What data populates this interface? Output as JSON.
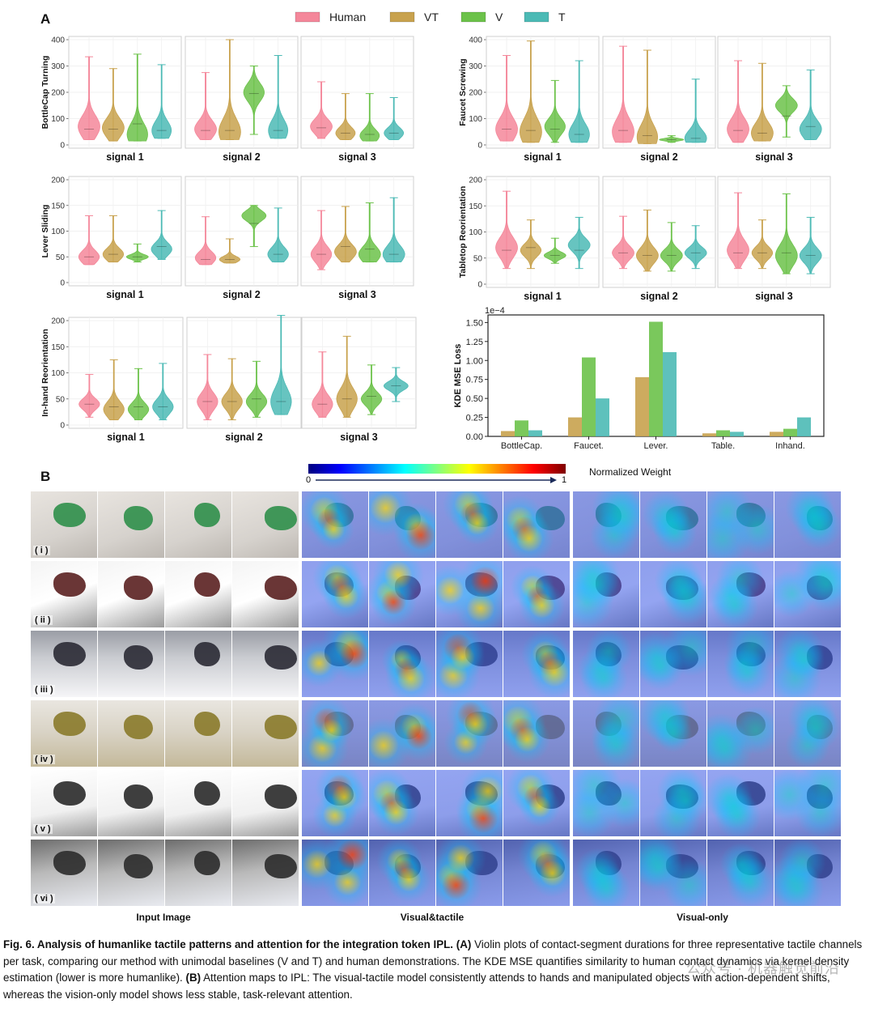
{
  "figure": {
    "panel_a_label": "A",
    "panel_b_label": "B",
    "legend": [
      {
        "name": "Human",
        "color": "#f4879a"
      },
      {
        "name": "VT",
        "color": "#c8a24e"
      },
      {
        "name": "V",
        "color": "#6cc24a"
      },
      {
        "name": "T",
        "color": "#4cbab5"
      }
    ],
    "violin_rows": [
      {
        "task": "BottleCap Turning",
        "ylabels": [
          "0",
          "100",
          "200",
          "300",
          "400"
        ],
        "ymax": 400,
        "groups": [
          {
            "signal": "signal 1",
            "series": [
              {
                "min": 20,
                "max": 335,
                "med": 60,
                "peak": 70,
                "width": 0.9
              },
              {
                "min": 15,
                "max": 290,
                "med": 60,
                "peak": 65,
                "width": 0.9
              },
              {
                "min": 15,
                "max": 345,
                "med": 80,
                "peak": 40,
                "width": 0.85
              },
              {
                "min": 25,
                "max": 305,
                "med": 55,
                "peak": 55,
                "width": 0.8
              }
            ]
          },
          {
            "signal": "signal 2",
            "series": [
              {
                "min": 20,
                "max": 275,
                "med": 55,
                "peak": 60,
                "width": 0.9
              },
              {
                "min": 20,
                "max": 400,
                "med": 55,
                "peak": 50,
                "width": 0.9
              },
              {
                "min": 40,
                "max": 300,
                "med": 195,
                "peak": 200,
                "width": 0.85
              },
              {
                "min": 25,
                "max": 340,
                "med": 55,
                "peak": 55,
                "width": 0.8
              }
            ]
          },
          {
            "signal": "signal 3",
            "series": [
              {
                "min": 25,
                "max": 240,
                "med": 65,
                "peak": 70,
                "width": 0.9
              },
              {
                "min": 20,
                "max": 195,
                "med": 45,
                "peak": 45,
                "width": 0.8
              },
              {
                "min": 15,
                "max": 195,
                "med": 40,
                "peak": 35,
                "width": 0.8
              },
              {
                "min": 20,
                "max": 180,
                "med": 45,
                "peak": 45,
                "width": 0.8
              }
            ]
          }
        ]
      },
      {
        "task": "Faucet Screwing",
        "ylabels": [
          "0",
          "100",
          "200",
          "300",
          "400"
        ],
        "ymax": 400,
        "groups": [
          {
            "signal": "signal 1",
            "series": [
              {
                "min": 15,
                "max": 340,
                "med": 60,
                "peak": 60,
                "width": 0.9
              },
              {
                "min": 10,
                "max": 395,
                "med": 55,
                "peak": 50,
                "width": 0.9
              },
              {
                "min": 10,
                "max": 245,
                "med": 60,
                "peak": 70,
                "width": 0.85
              },
              {
                "min": 10,
                "max": 320,
                "med": 40,
                "peak": 40,
                "width": 0.85
              }
            ]
          },
          {
            "signal": "signal 2",
            "series": [
              {
                "min": 10,
                "max": 375,
                "med": 55,
                "peak": 50,
                "width": 0.9
              },
              {
                "min": 5,
                "max": 360,
                "med": 35,
                "peak": 30,
                "width": 0.85
              },
              {
                "min": 10,
                "max": 35,
                "med": 20,
                "peak": 20,
                "width": 1.0
              },
              {
                "min": 10,
                "max": 250,
                "med": 25,
                "peak": 25,
                "width": 0.9
              }
            ]
          },
          {
            "signal": "signal 3",
            "series": [
              {
                "min": 10,
                "max": 320,
                "med": 55,
                "peak": 60,
                "width": 0.9
              },
              {
                "min": 15,
                "max": 310,
                "med": 45,
                "peak": 45,
                "width": 0.9
              },
              {
                "min": 30,
                "max": 225,
                "med": 110,
                "peak": 150,
                "width": 0.9
              },
              {
                "min": 20,
                "max": 285,
                "med": 70,
                "peak": 60,
                "width": 0.9
              }
            ]
          }
        ]
      },
      {
        "task": "Lever Sliding",
        "ylabels": [
          "0",
          "50",
          "100",
          "150",
          "200"
        ],
        "ymax": 200,
        "groups": [
          {
            "signal": "signal 1",
            "series": [
              {
                "min": 35,
                "max": 130,
                "med": 50,
                "peak": 50,
                "width": 0.85
              },
              {
                "min": 40,
                "max": 130,
                "med": 55,
                "peak": 55,
                "width": 0.85
              },
              {
                "min": 40,
                "max": 75,
                "med": 50,
                "peak": 50,
                "width": 0.9
              },
              {
                "min": 45,
                "max": 140,
                "med": 70,
                "peak": 65,
                "width": 0.85
              }
            ]
          },
          {
            "signal": "signal 2",
            "series": [
              {
                "min": 35,
                "max": 128,
                "med": 45,
                "peak": 48,
                "width": 0.85
              },
              {
                "min": 38,
                "max": 85,
                "med": 45,
                "peak": 45,
                "width": 0.85
              },
              {
                "min": 70,
                "max": 150,
                "med": 115,
                "peak": 130,
                "width": 1.0
              },
              {
                "min": 40,
                "max": 145,
                "med": 55,
                "peak": 55,
                "width": 0.85
              }
            ]
          },
          {
            "signal": "signal 3",
            "series": [
              {
                "min": 25,
                "max": 140,
                "med": 55,
                "peak": 55,
                "width": 0.85
              },
              {
                "min": 40,
                "max": 148,
                "med": 70,
                "peak": 60,
                "width": 0.9
              },
              {
                "min": 40,
                "max": 155,
                "med": 65,
                "peak": 55,
                "width": 0.9
              },
              {
                "min": 40,
                "max": 165,
                "med": 55,
                "peak": 55,
                "width": 0.9
              }
            ]
          }
        ]
      },
      {
        "task": "Tabletop Reorientation",
        "ylabels": [
          "0",
          "50",
          "100",
          "150",
          "200"
        ],
        "ymax": 200,
        "groups": [
          {
            "signal": "signal 1",
            "series": [
              {
                "min": 30,
                "max": 178,
                "med": 65,
                "peak": 70,
                "width": 0.9
              },
              {
                "min": 30,
                "max": 123,
                "med": 70,
                "peak": 65,
                "width": 0.85
              },
              {
                "min": 40,
                "max": 88,
                "med": 55,
                "peak": 55,
                "width": 0.9
              },
              {
                "min": 30,
                "max": 128,
                "med": 65,
                "peak": 75,
                "width": 0.9
              }
            ]
          },
          {
            "signal": "signal 2",
            "series": [
              {
                "min": 30,
                "max": 130,
                "med": 60,
                "peak": 60,
                "width": 0.9
              },
              {
                "min": 25,
                "max": 142,
                "med": 55,
                "peak": 55,
                "width": 0.9
              },
              {
                "min": 25,
                "max": 118,
                "med": 55,
                "peak": 55,
                "width": 0.9
              },
              {
                "min": 30,
                "max": 112,
                "med": 60,
                "peak": 60,
                "width": 0.9
              }
            ]
          },
          {
            "signal": "signal 3",
            "series": [
              {
                "min": 30,
                "max": 175,
                "med": 60,
                "peak": 65,
                "width": 0.9
              },
              {
                "min": 30,
                "max": 123,
                "med": 60,
                "peak": 60,
                "width": 0.85
              },
              {
                "min": 20,
                "max": 173,
                "med": 60,
                "peak": 55,
                "width": 0.9
              },
              {
                "min": 20,
                "max": 128,
                "med": 55,
                "peak": 55,
                "width": 0.9
              }
            ]
          }
        ]
      },
      {
        "task": "In-hand Reorientation",
        "ylabels": [
          "0",
          "50",
          "100",
          "150",
          "200"
        ],
        "ymax": 200,
        "groups": [
          {
            "signal": "signal 1",
            "series": [
              {
                "min": 15,
                "max": 97,
                "med": 40,
                "peak": 40,
                "width": 0.85
              },
              {
                "min": 10,
                "max": 125,
                "med": 35,
                "peak": 30,
                "width": 0.85
              },
              {
                "min": 10,
                "max": 108,
                "med": 35,
                "peak": 30,
                "width": 0.85
              },
              {
                "min": 10,
                "max": 118,
                "med": 35,
                "peak": 35,
                "width": 0.85
              }
            ]
          },
          {
            "signal": "signal 2",
            "series": [
              {
                "min": 10,
                "max": 135,
                "med": 45,
                "peak": 45,
                "width": 0.85
              },
              {
                "min": 10,
                "max": 127,
                "med": 45,
                "peak": 45,
                "width": 0.85
              },
              {
                "min": 15,
                "max": 122,
                "med": 50,
                "peak": 45,
                "width": 0.85
              },
              {
                "min": 20,
                "max": 210,
                "med": 45,
                "peak": 45,
                "width": 0.85
              }
            ]
          },
          {
            "signal": "signal 3",
            "series": [
              {
                "min": 15,
                "max": 140,
                "med": 40,
                "peak": 40,
                "width": 0.85
              },
              {
                "min": 15,
                "max": 170,
                "med": 50,
                "peak": 50,
                "width": 0.85
              },
              {
                "min": 20,
                "max": 115,
                "med": 55,
                "peak": 50,
                "width": 0.85
              },
              {
                "min": 45,
                "max": 110,
                "med": 75,
                "peak": 75,
                "width": 1.0
              }
            ]
          }
        ]
      }
    ],
    "bar_chart": {
      "ylabel": "KDE MSE Loss",
      "exponent": "1e−4",
      "yticks": [
        "0.00",
        "0.25",
        "0.50",
        "0.75",
        "1.00",
        "1.25",
        "1.50"
      ],
      "ymax": 1.6,
      "categories": [
        "BottleCap.",
        "Faucet.",
        "Lever.",
        "Table.",
        "Inhand."
      ]
    },
    "colorbar": {
      "min": "0",
      "max": "1",
      "label": "Normalized Weight"
    },
    "row_labels": [
      "( i )",
      "( ii )",
      "( iii )",
      "( iv )",
      "( v )",
      "( vi )"
    ],
    "column_titles": [
      "Input Image",
      "Visual&tactile",
      "Visual-only"
    ],
    "caption": {
      "bold": "Fig. 6. Analysis of humanlike tactile patterns and attention for the integration token IPL.",
      "a_label": "(A)",
      "a_text": " Violin plots of contact-segment durations for three representative tactile channels per task, comparing our method with unimodal baselines (V and T) and human demonstrations. The KDE MSE quantifies similarity to human contact dynamics via kernel density estimation (lower is more humanlike).",
      "b_label": "(B)",
      "b_text": " Attention maps to IPL: The visual-tactile model consistently attends to hands and manipulated objects with action-dependent shifts, whereas the vision-only model shows less stable, task-relevant attention."
    },
    "watermark": "公众号 · 机器触觉前沿"
  },
  "chart_data": [
    {
      "type": "bar",
      "title": "",
      "xlabel": "",
      "ylabel": "KDE MSE Loss",
      "ylim": [
        0,
        1.6
      ],
      "y_scale_note": "1e-4",
      "categories": [
        "BottleCap.",
        "Faucet.",
        "Lever.",
        "Table.",
        "Inhand."
      ],
      "series": [
        {
          "name": "VT",
          "values": [
            0.07,
            0.25,
            0.78,
            0.04,
            0.06
          ]
        },
        {
          "name": "V",
          "values": [
            0.21,
            1.04,
            1.51,
            0.08,
            0.1
          ]
        },
        {
          "name": "T",
          "values": [
            0.08,
            0.5,
            1.11,
            0.06,
            0.25
          ]
        }
      ]
    }
  ]
}
